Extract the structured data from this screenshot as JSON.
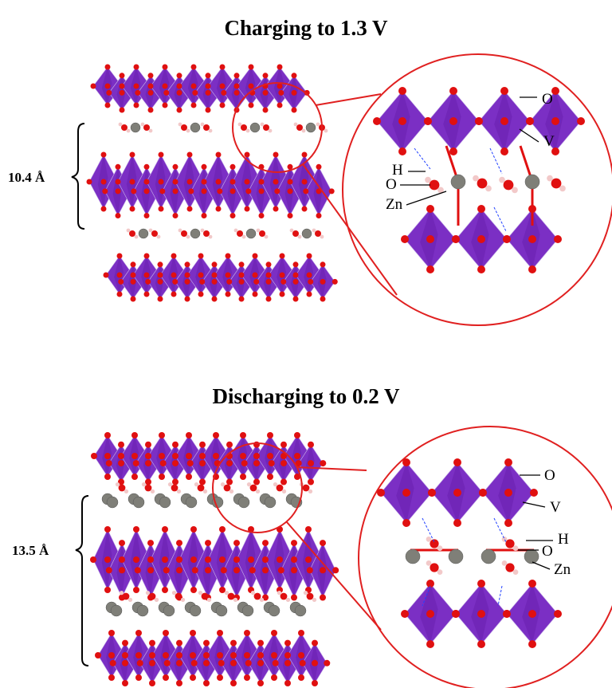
{
  "panels": [
    {
      "title": "Charging to 1.3 V",
      "spacing": "10.4  Å",
      "labels": {
        "o_top": "O",
        "v": "V",
        "h": "H",
        "o_water": "O",
        "zn": "Zn"
      }
    },
    {
      "title": "Discharging to 0.2 V",
      "spacing": "13.5  Å",
      "labels": {
        "o_top": "O",
        "v": "V",
        "h": "H",
        "o_water": "O",
        "zn": "Zn"
      }
    }
  ],
  "colors": {
    "vanadium_octahedra": "#7b2fc4",
    "oxygen": "#e01010",
    "zinc": "#7f7f78",
    "hydrogen": "#f2c9c9",
    "highlight_circle": "#e02020",
    "hydrogen_bond": "#2040ff"
  }
}
